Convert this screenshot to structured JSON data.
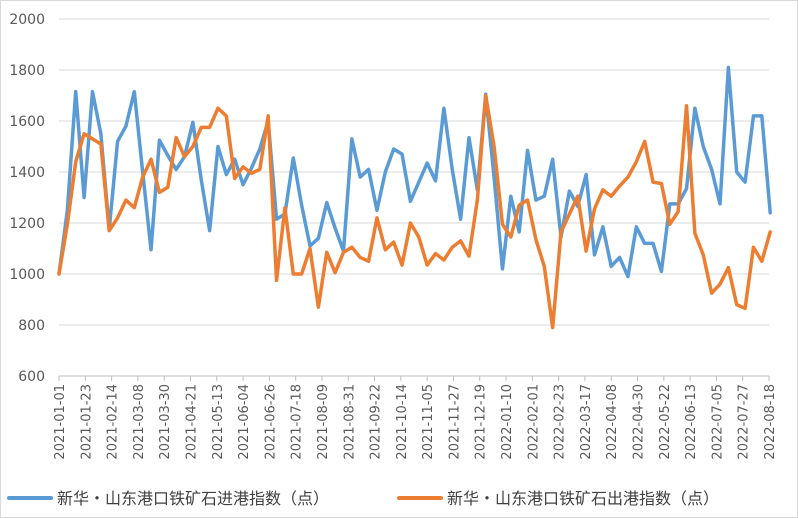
{
  "chart_data": {
    "type": "line",
    "title": "",
    "xlabel": "",
    "ylabel": "",
    "ylim": [
      600,
      2000
    ],
    "yticks": [
      600,
      800,
      1000,
      1200,
      1400,
      1600,
      1800,
      2000
    ],
    "grid": true,
    "legend_position": "bottom",
    "x_tick_labels": [
      "2021-01-01",
      "2021-01-23",
      "2021-02-14",
      "2021-03-08",
      "2021-03-30",
      "2021-04-21",
      "2021-05-13",
      "2021-06-04",
      "2021-06-26",
      "2021-07-18",
      "2021-08-09",
      "2021-08-31",
      "2021-09-22",
      "2021-10-14",
      "2021-11-05",
      "2021-11-27",
      "2021-12-19",
      "2022-01-10",
      "2022-02-01",
      "2022-02-23",
      "2022-03-17",
      "2022-04-08",
      "2022-04-30",
      "2022-05-22",
      "2022-06-13",
      "2022-07-05",
      "2022-07-27",
      "2022-08-18"
    ],
    "x": [
      "2021-01-01",
      "2021-01-08",
      "2021-01-15",
      "2021-01-22",
      "2021-01-29",
      "2021-02-05",
      "2021-02-12",
      "2021-02-19",
      "2021-02-26",
      "2021-03-05",
      "2021-03-12",
      "2021-03-19",
      "2021-03-26",
      "2021-04-02",
      "2021-04-09",
      "2021-04-16",
      "2021-04-23",
      "2021-04-30",
      "2021-05-07",
      "2021-05-14",
      "2021-05-21",
      "2021-05-28",
      "2021-06-04",
      "2021-06-11",
      "2021-06-18",
      "2021-06-25",
      "2021-07-02",
      "2021-07-09",
      "2021-07-16",
      "2021-07-23",
      "2021-07-30",
      "2021-08-06",
      "2021-08-13",
      "2021-08-20",
      "2021-08-27",
      "2021-09-03",
      "2021-09-10",
      "2021-09-17",
      "2021-09-24",
      "2021-10-01",
      "2021-10-08",
      "2021-10-15",
      "2021-10-22",
      "2021-10-29",
      "2021-11-05",
      "2021-11-12",
      "2021-11-19",
      "2021-11-26",
      "2021-12-03",
      "2021-12-10",
      "2021-12-17",
      "2021-12-24",
      "2021-12-31",
      "2022-01-07",
      "2022-01-14",
      "2022-01-21",
      "2022-01-28",
      "2022-02-04",
      "2022-02-11",
      "2022-02-18",
      "2022-02-25",
      "2022-03-04",
      "2022-03-11",
      "2022-03-18",
      "2022-03-25",
      "2022-04-01",
      "2022-04-08",
      "2022-04-15",
      "2022-04-22",
      "2022-04-29",
      "2022-05-06",
      "2022-05-13",
      "2022-05-20",
      "2022-05-27",
      "2022-06-03",
      "2022-06-10",
      "2022-06-17",
      "2022-06-24",
      "2022-07-01",
      "2022-07-08",
      "2022-07-15",
      "2022-07-22",
      "2022-07-29",
      "2022-08-05",
      "2022-08-12",
      "2022-08-19"
    ],
    "series": [
      {
        "name": "新华・山东港口铁矿石进港指数（点）",
        "color": "#5b9bd5",
        "values": [
          1000,
          1250,
          1715,
          1300,
          1715,
          1550,
          1175,
          1520,
          1580,
          1715,
          1400,
          1095,
          1525,
          1465,
          1410,
          1460,
          1595,
          1370,
          1170,
          1500,
          1390,
          1450,
          1350,
          1415,
          1490,
          1600,
          1215,
          1235,
          1455,
          1270,
          1110,
          1140,
          1280,
          1180,
          1090,
          1530,
          1380,
          1410,
          1250,
          1400,
          1490,
          1470,
          1285,
          1360,
          1435,
          1365,
          1650,
          1410,
          1215,
          1535,
          1330,
          1705,
          1380,
          1020,
          1305,
          1165,
          1485,
          1290,
          1305,
          1450,
          1145,
          1325,
          1265,
          1390,
          1075,
          1185,
          1030,
          1065,
          990,
          1185,
          1120,
          1120,
          1010,
          1275,
          1275,
          1335,
          1650,
          1500,
          1410,
          1275,
          1810,
          1400,
          1360,
          1620,
          1620,
          1240
        ]
      },
      {
        "name": "新华・山东港口铁矿石出港指数（点）",
        "color": "#ed7d31",
        "values": [
          1000,
          1195,
          1440,
          1550,
          1530,
          1510,
          1170,
          1220,
          1290,
          1260,
          1380,
          1450,
          1320,
          1340,
          1535,
          1460,
          1500,
          1575,
          1575,
          1650,
          1620,
          1375,
          1420,
          1395,
          1410,
          1620,
          975,
          1260,
          1000,
          1000,
          1100,
          870,
          1085,
          1005,
          1085,
          1105,
          1065,
          1050,
          1220,
          1095,
          1125,
          1035,
          1200,
          1145,
          1035,
          1080,
          1055,
          1105,
          1130,
          1070,
          1290,
          1700,
          1500,
          1195,
          1145,
          1270,
          1290,
          1135,
          1030,
          790,
          1165,
          1235,
          1305,
          1090,
          1255,
          1330,
          1305,
          1345,
          1380,
          1440,
          1520,
          1360,
          1355,
          1195,
          1245,
          1660,
          1160,
          1075,
          925,
          960,
          1025,
          880,
          865,
          1105,
          1050,
          1165
        ]
      }
    ]
  }
}
